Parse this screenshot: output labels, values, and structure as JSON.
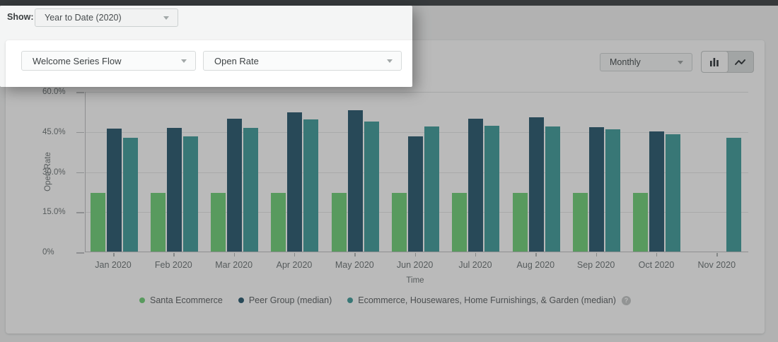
{
  "show_row": {
    "label": "Show:",
    "value": "Year to Date (2020)"
  },
  "filters": {
    "flow_value": "Welcome Series Flow",
    "metric_value": "Open Rate"
  },
  "toolbar": {
    "interval_value": "Monthly"
  },
  "icons": {
    "help_glyph": "?"
  },
  "colors": {
    "series_green": "#79d382",
    "series_dark_teal": "#386579",
    "series_teal": "#4ea3a2",
    "dim_overlay": "rgba(0,0,0,0.27)",
    "card_background": "#ffffff"
  },
  "chart_data": {
    "type": "bar",
    "title": "",
    "xlabel": "Time",
    "ylabel": "Open Rate",
    "ylim": [
      0,
      60
    ],
    "grid": true,
    "legend_position": "bottom",
    "yticks": [
      {
        "value": 60,
        "label": "60.0%"
      },
      {
        "value": 45,
        "label": "45.0%"
      },
      {
        "value": 30,
        "label": "30.0%"
      },
      {
        "value": 15,
        "label": "15.0%"
      },
      {
        "value": 0,
        "label": "0%"
      }
    ],
    "categories": [
      "Jan 2020",
      "Feb 2020",
      "Mar 2020",
      "Apr 2020",
      "May 2020",
      "Jun 2020",
      "Jul 2020",
      "Aug 2020",
      "Sep 2020",
      "Oct 2020",
      "Nov 2020"
    ],
    "series": [
      {
        "name": "Santa Ecommerce",
        "color": "#79d382",
        "values": [
          21.9,
          21.9,
          21.9,
          21.9,
          21.9,
          21.9,
          21.9,
          21.9,
          21.9,
          21.9,
          null
        ]
      },
      {
        "name": "Peer Group (median)",
        "color": "#386579",
        "values": [
          45.9,
          46.2,
          49.8,
          52.0,
          52.8,
          43.1,
          49.8,
          50.1,
          46.4,
          44.9,
          null
        ]
      },
      {
        "name": "Ecommerce, Housewares, Home Furnishings, & Garden (median)",
        "color": "#4ea3a2",
        "values": [
          42.5,
          43.1,
          46.2,
          49.5,
          48.6,
          46.9,
          47.1,
          46.7,
          45.7,
          43.8,
          42.5
        ]
      }
    ]
  }
}
